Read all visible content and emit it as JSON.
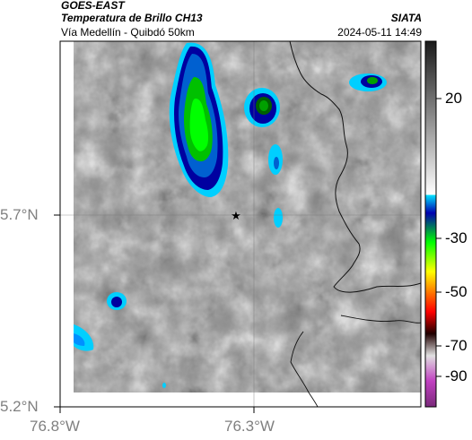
{
  "header": {
    "satellite": "GOES-EAST",
    "product": "Temperatura de Brillo CH13",
    "brand": "SIATA",
    "location": "Vía Medellín - Quibdó 50km",
    "timestamp": "2024-05-11 14:49"
  },
  "map": {
    "lat_ticks": [
      "5.7°N",
      "5.2°N"
    ],
    "lon_ticks": [
      "76.8°W",
      "76.3°W"
    ],
    "marker": "star-icon"
  },
  "colorbar": {
    "tick_labels": [
      "20",
      "-30",
      "-50",
      "-70",
      "-90"
    ],
    "colors": {
      "warm": "#7a7a7a",
      "cyan": "#00e5ff",
      "blue": "#0000b0",
      "green": "#00ff00",
      "yellow": "#ffff00",
      "red": "#ff0000",
      "dark": "#200000",
      "magenta": "#c040c0"
    }
  }
}
